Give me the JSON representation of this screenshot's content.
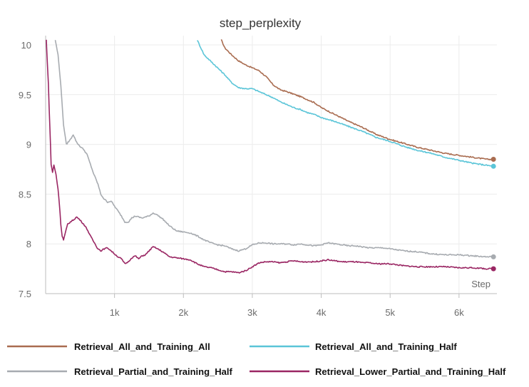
{
  "chart_data": {
    "type": "line",
    "title": "step_perplexity",
    "xlabel": "Step",
    "ylabel": "",
    "xlim": [
      0,
      6550
    ],
    "ylim": [
      7.5,
      10.05
    ],
    "x_ticks": [
      1000,
      2000,
      3000,
      4000,
      5000,
      6000
    ],
    "x_tick_labels": [
      "1k",
      "2k",
      "3k",
      "4k",
      "5k",
      "6k"
    ],
    "y_ticks": [
      7.5,
      8,
      8.5,
      9,
      9.5,
      10
    ],
    "y_tick_labels": [
      "7.5",
      "8",
      "8.5",
      "9",
      "9.5",
      "10"
    ],
    "grid": true,
    "legend": "bottom",
    "series": [
      {
        "name": "Retrieval_All_and_Training_All",
        "color": "#a96c50",
        "end_marker": true,
        "points": [
          [
            2550,
            10.05
          ],
          [
            2600,
            9.97
          ],
          [
            2700,
            9.9
          ],
          [
            2800,
            9.84
          ],
          [
            2900,
            9.8
          ],
          [
            3000,
            9.77
          ],
          [
            3100,
            9.74
          ],
          [
            3200,
            9.68
          ],
          [
            3300,
            9.6
          ],
          [
            3400,
            9.55
          ],
          [
            3500,
            9.53
          ],
          [
            3700,
            9.48
          ],
          [
            3900,
            9.42
          ],
          [
            4000,
            9.37
          ],
          [
            4200,
            9.3
          ],
          [
            4400,
            9.23
          ],
          [
            4600,
            9.17
          ],
          [
            4800,
            9.1
          ],
          [
            5000,
            9.05
          ],
          [
            5200,
            9.01
          ],
          [
            5400,
            8.97
          ],
          [
            5600,
            8.94
          ],
          [
            5800,
            8.91
          ],
          [
            6000,
            8.89
          ],
          [
            6200,
            8.87
          ],
          [
            6300,
            8.86
          ],
          [
            6400,
            8.85
          ],
          [
            6500,
            8.85
          ]
        ]
      },
      {
        "name": "Retrieval_All_and_Training_Half",
        "color": "#5bc5d8",
        "end_marker": true,
        "points": [
          [
            2200,
            10.05
          ],
          [
            2300,
            9.9
          ],
          [
            2450,
            9.8
          ],
          [
            2600,
            9.7
          ],
          [
            2700,
            9.62
          ],
          [
            2800,
            9.57
          ],
          [
            2900,
            9.56
          ],
          [
            3000,
            9.56
          ],
          [
            3100,
            9.53
          ],
          [
            3200,
            9.5
          ],
          [
            3300,
            9.47
          ],
          [
            3400,
            9.43
          ],
          [
            3500,
            9.4
          ],
          [
            3600,
            9.37
          ],
          [
            3700,
            9.35
          ],
          [
            3800,
            9.32
          ],
          [
            3900,
            9.3
          ],
          [
            4000,
            9.27
          ],
          [
            4200,
            9.23
          ],
          [
            4400,
            9.18
          ],
          [
            4600,
            9.13
          ],
          [
            4800,
            9.07
          ],
          [
            5000,
            9.03
          ],
          [
            5200,
            8.98
          ],
          [
            5400,
            8.94
          ],
          [
            5600,
            8.91
          ],
          [
            5800,
            8.87
          ],
          [
            6000,
            8.84
          ],
          [
            6200,
            8.81
          ],
          [
            6400,
            8.79
          ],
          [
            6500,
            8.78
          ]
        ]
      },
      {
        "name": "Retrieval_Partial_and_Training_Half",
        "color": "#a7abb0",
        "end_marker": true,
        "points": [
          [
            140,
            10.05
          ],
          [
            180,
            9.9
          ],
          [
            220,
            9.6
          ],
          [
            260,
            9.2
          ],
          [
            300,
            9.0
          ],
          [
            360,
            9.05
          ],
          [
            400,
            9.1
          ],
          [
            450,
            9.02
          ],
          [
            500,
            8.98
          ],
          [
            550,
            8.95
          ],
          [
            600,
            8.9
          ],
          [
            650,
            8.8
          ],
          [
            700,
            8.7
          ],
          [
            760,
            8.6
          ],
          [
            800,
            8.5
          ],
          [
            850,
            8.45
          ],
          [
            900,
            8.42
          ],
          [
            950,
            8.43
          ],
          [
            1000,
            8.38
          ],
          [
            1050,
            8.33
          ],
          [
            1100,
            8.28
          ],
          [
            1150,
            8.22
          ],
          [
            1200,
            8.22
          ],
          [
            1250,
            8.26
          ],
          [
            1300,
            8.28
          ],
          [
            1400,
            8.26
          ],
          [
            1500,
            8.28
          ],
          [
            1560,
            8.31
          ],
          [
            1600,
            8.3
          ],
          [
            1700,
            8.25
          ],
          [
            1800,
            8.18
          ],
          [
            1900,
            8.13
          ],
          [
            2000,
            8.12
          ],
          [
            2100,
            8.11
          ],
          [
            2200,
            8.08
          ],
          [
            2300,
            8.04
          ],
          [
            2400,
            8.01
          ],
          [
            2500,
            7.99
          ],
          [
            2600,
            7.98
          ],
          [
            2700,
            7.95
          ],
          [
            2800,
            7.93
          ],
          [
            2900,
            7.95
          ],
          [
            3000,
            7.99
          ],
          [
            3100,
            8.01
          ],
          [
            3200,
            8.01
          ],
          [
            3300,
            8.0
          ],
          [
            3400,
            8.0
          ],
          [
            3500,
            8.0
          ],
          [
            3600,
            7.99
          ],
          [
            3700,
            8.0
          ],
          [
            3800,
            7.99
          ],
          [
            3900,
            7.98
          ],
          [
            4000,
            7.99
          ],
          [
            4100,
            8.01
          ],
          [
            4200,
            8.0
          ],
          [
            4300,
            7.99
          ],
          [
            4400,
            7.98
          ],
          [
            4500,
            7.98
          ],
          [
            4600,
            7.97
          ],
          [
            4700,
            7.96
          ],
          [
            4800,
            7.96
          ],
          [
            4900,
            7.96
          ],
          [
            5000,
            7.95
          ],
          [
            5200,
            7.93
          ],
          [
            5400,
            7.92
          ],
          [
            5600,
            7.9
          ],
          [
            5800,
            7.89
          ],
          [
            6000,
            7.89
          ],
          [
            6200,
            7.88
          ],
          [
            6400,
            7.87
          ],
          [
            6500,
            7.87
          ]
        ]
      },
      {
        "name": "Retrieval_Lower_Partial_and_Training_Half",
        "color": "#9a2663",
        "end_marker": true,
        "points": [
          [
            10,
            10.05
          ],
          [
            20,
            9.9
          ],
          [
            40,
            9.6
          ],
          [
            60,
            9.2
          ],
          [
            80,
            8.8
          ],
          [
            100,
            8.72
          ],
          [
            120,
            8.79
          ],
          [
            150,
            8.7
          ],
          [
            180,
            8.55
          ],
          [
            200,
            8.4
          ],
          [
            220,
            8.2
          ],
          [
            240,
            8.08
          ],
          [
            260,
            8.04
          ],
          [
            290,
            8.12
          ],
          [
            320,
            8.2
          ],
          [
            360,
            8.22
          ],
          [
            400,
            8.24
          ],
          [
            450,
            8.27
          ],
          [
            500,
            8.24
          ],
          [
            550,
            8.2
          ],
          [
            600,
            8.15
          ],
          [
            650,
            8.08
          ],
          [
            700,
            8.02
          ],
          [
            750,
            7.96
          ],
          [
            800,
            7.93
          ],
          [
            850,
            7.95
          ],
          [
            900,
            7.96
          ],
          [
            950,
            7.93
          ],
          [
            1000,
            7.9
          ],
          [
            1050,
            7.87
          ],
          [
            1100,
            7.85
          ],
          [
            1150,
            7.8
          ],
          [
            1200,
            7.82
          ],
          [
            1250,
            7.86
          ],
          [
            1300,
            7.88
          ],
          [
            1350,
            7.85
          ],
          [
            1400,
            7.88
          ],
          [
            1450,
            7.89
          ],
          [
            1500,
            7.93
          ],
          [
            1560,
            7.97
          ],
          [
            1600,
            7.96
          ],
          [
            1700,
            7.92
          ],
          [
            1800,
            7.87
          ],
          [
            1900,
            7.86
          ],
          [
            2000,
            7.85
          ],
          [
            2100,
            7.84
          ],
          [
            2200,
            7.8
          ],
          [
            2300,
            7.77
          ],
          [
            2400,
            7.76
          ],
          [
            2500,
            7.74
          ],
          [
            2600,
            7.72
          ],
          [
            2700,
            7.72
          ],
          [
            2800,
            7.71
          ],
          [
            2900,
            7.73
          ],
          [
            3000,
            7.77
          ],
          [
            3100,
            7.81
          ],
          [
            3200,
            7.82
          ],
          [
            3300,
            7.82
          ],
          [
            3400,
            7.81
          ],
          [
            3500,
            7.82
          ],
          [
            3600,
            7.83
          ],
          [
            3700,
            7.82
          ],
          [
            3800,
            7.82
          ],
          [
            3900,
            7.82
          ],
          [
            4000,
            7.83
          ],
          [
            4100,
            7.84
          ],
          [
            4200,
            7.83
          ],
          [
            4300,
            7.82
          ],
          [
            4400,
            7.82
          ],
          [
            4500,
            7.82
          ],
          [
            4600,
            7.81
          ],
          [
            4700,
            7.81
          ],
          [
            4800,
            7.8
          ],
          [
            5000,
            7.8
          ],
          [
            5200,
            7.78
          ],
          [
            5400,
            7.77
          ],
          [
            5600,
            7.77
          ],
          [
            5800,
            7.77
          ],
          [
            6000,
            7.76
          ],
          [
            6200,
            7.76
          ],
          [
            6400,
            7.75
          ],
          [
            6500,
            7.75
          ]
        ]
      }
    ]
  }
}
